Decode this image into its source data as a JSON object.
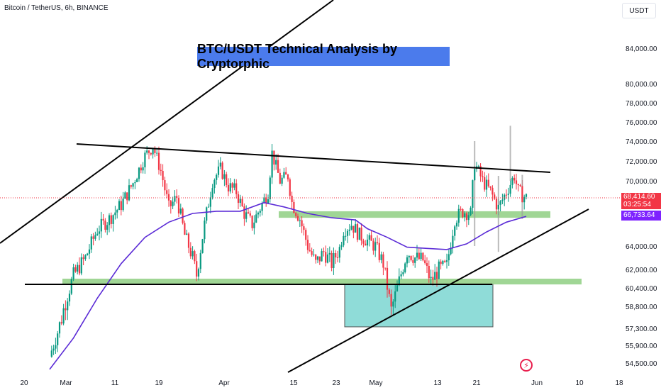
{
  "header": {
    "symbol": "Bitcoin / TetherUS, 6h, BINANCE",
    "currency": "USDT"
  },
  "title": "BTC/USDT Technical Analysis by Cryptorphic",
  "price_labels": {
    "last_price": "68,414.60",
    "countdown": "03:25:54",
    "ma_value": "66,733.64"
  },
  "logo_glyph": "⚡",
  "colors": {
    "up": "#089981",
    "down": "#f23645",
    "ma": "#5b2bd6",
    "support_zone": "#8fcf83",
    "demand_zone": "#8fdcd8",
    "title_bg": "#4b7bec",
    "trendline": "#000000",
    "wick": "#9e9e9e"
  },
  "chart_data": {
    "type": "candlestick",
    "instrument": "BTC/USDT",
    "timeframe": "6h",
    "y_ticks": [
      "84,000.00",
      "80,000.00",
      "78,000.00",
      "76,000.00",
      "74,000.00",
      "72,000.00",
      "70,000.00",
      "64,000.00",
      "62,000.00",
      "60,400.00",
      "58,800.00",
      "57,300.00",
      "55,900.00",
      "54,500.00"
    ],
    "y_tick_values": [
      84000,
      80000,
      78000,
      76000,
      74000,
      72000,
      70000,
      64000,
      62000,
      60400,
      58800,
      57300,
      55900,
      54500
    ],
    "x_ticks": [
      "20",
      "Mar",
      "11",
      "19",
      "Apr",
      "15",
      "23",
      "May",
      "13",
      "21",
      "Jun",
      "10",
      "18"
    ],
    "series": [
      {
        "name": "price",
        "points": [
          [
            0,
            55000
          ],
          [
            6,
            58000
          ],
          [
            12,
            61500
          ],
          [
            18,
            63000
          ],
          [
            24,
            65500
          ],
          [
            30,
            66500
          ],
          [
            36,
            67800
          ],
          [
            42,
            69800
          ],
          [
            48,
            72500
          ],
          [
            52,
            73500
          ],
          [
            56,
            71000
          ],
          [
            60,
            67500
          ],
          [
            64,
            68500
          ],
          [
            68,
            65000
          ],
          [
            72,
            63000
          ],
          [
            74,
            61500
          ],
          [
            78,
            66000
          ],
          [
            82,
            70000
          ],
          [
            86,
            71200
          ],
          [
            90,
            69500
          ],
          [
            94,
            69000
          ],
          [
            98,
            67000
          ],
          [
            102,
            66000
          ],
          [
            106,
            67500
          ],
          [
            110,
            69000
          ],
          [
            112,
            72800
          ],
          [
            116,
            70000
          ],
          [
            120,
            70500
          ],
          [
            122,
            68000
          ],
          [
            126,
            66500
          ],
          [
            130,
            64000
          ],
          [
            134,
            62500
          ],
          [
            138,
            63500
          ],
          [
            142,
            62500
          ],
          [
            146,
            63800
          ],
          [
            148,
            65500
          ],
          [
            152,
            66000
          ],
          [
            156,
            65000
          ],
          [
            160,
            64500
          ],
          [
            164,
            64000
          ],
          [
            168,
            62500
          ],
          [
            170,
            60500
          ],
          [
            172,
            58500
          ],
          [
            176,
            61000
          ],
          [
            180,
            63500
          ],
          [
            184,
            63000
          ],
          [
            188,
            62800
          ],
          [
            192,
            61000
          ],
          [
            196,
            62000
          ],
          [
            200,
            62300
          ],
          [
            204,
            66500
          ],
          [
            208,
            67200
          ],
          [
            212,
            67000
          ],
          [
            214,
            71800
          ],
          [
            218,
            70000
          ],
          [
            222,
            69000
          ],
          [
            226,
            67500
          ],
          [
            230,
            69000
          ],
          [
            234,
            70500
          ],
          [
            236,
            69000
          ],
          [
            240,
            68414.6
          ]
        ]
      },
      {
        "name": "MA",
        "points": [
          [
            0,
            54000
          ],
          [
            12,
            56500
          ],
          [
            24,
            59500
          ],
          [
            36,
            62500
          ],
          [
            48,
            64800
          ],
          [
            60,
            66200
          ],
          [
            72,
            67000
          ],
          [
            84,
            67200
          ],
          [
            96,
            67200
          ],
          [
            108,
            68000
          ],
          [
            118,
            67600
          ],
          [
            130,
            67000
          ],
          [
            142,
            66600
          ],
          [
            154,
            66400
          ],
          [
            160,
            65600
          ],
          [
            170,
            64800
          ],
          [
            180,
            63900
          ],
          [
            190,
            63800
          ],
          [
            200,
            63700
          ],
          [
            210,
            64200
          ],
          [
            220,
            65300
          ],
          [
            230,
            66200
          ],
          [
            240,
            66733.64
          ]
        ]
      }
    ],
    "zones": [
      {
        "low": 66600,
        "high": 67200
      },
      {
        "low": 60700,
        "high": 61200
      },
      {
        "low": 57400,
        "high": 60700
      }
    ],
    "grid": true,
    "legend": "none"
  }
}
